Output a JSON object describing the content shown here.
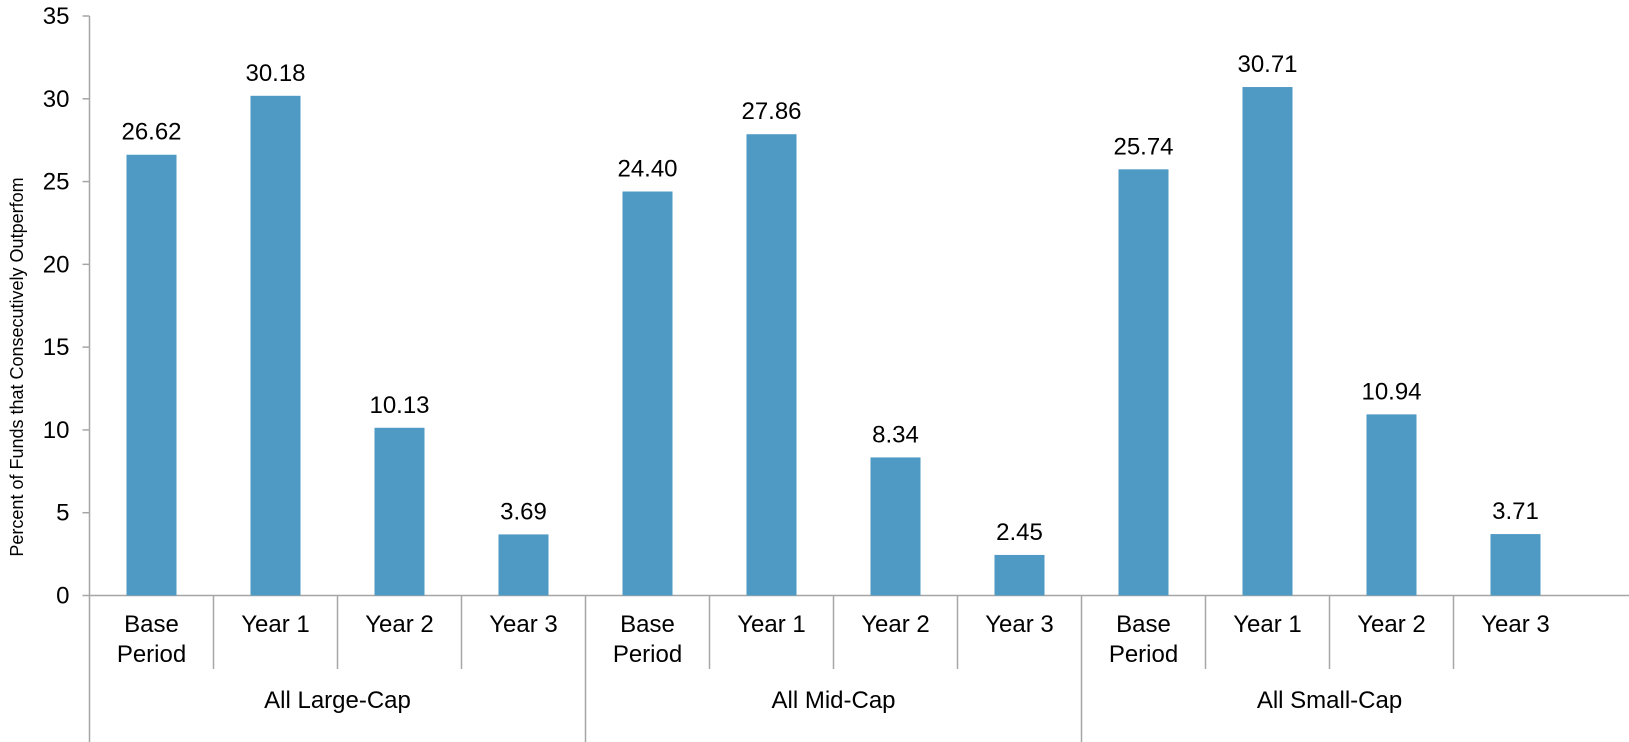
{
  "chart_data": {
    "type": "bar",
    "ylabel": "Percent of Funds that Consecutively Outperfom",
    "xlabel": "",
    "ylim": [
      0,
      35
    ],
    "yticks": [
      0,
      5,
      10,
      15,
      20,
      25,
      30,
      35
    ],
    "grid": false,
    "bar_color": "#4f9ac4",
    "groups": [
      {
        "label": "All Large-Cap",
        "categories": [
          [
            "Base",
            "Period"
          ],
          [
            "Year 1"
          ],
          [
            "Year 2"
          ],
          [
            "Year 3"
          ]
        ],
        "values": [
          26.62,
          30.18,
          10.13,
          3.69
        ],
        "value_labels": [
          "26.62",
          "30.18",
          "10.13",
          "3.69"
        ]
      },
      {
        "label": "All Mid-Cap",
        "categories": [
          [
            "Base",
            "Period"
          ],
          [
            "Year 1"
          ],
          [
            "Year 2"
          ],
          [
            "Year 3"
          ]
        ],
        "values": [
          24.4,
          27.86,
          8.34,
          2.45
        ],
        "value_labels": [
          "24.40",
          "27.86",
          "8.34",
          "2.45"
        ]
      },
      {
        "label": "All Small-Cap",
        "categories": [
          [
            "Base",
            "Period"
          ],
          [
            "Year 1"
          ],
          [
            "Year 2"
          ],
          [
            "Year 3"
          ]
        ],
        "values": [
          25.74,
          30.71,
          10.94,
          3.71
        ],
        "value_labels": [
          "25.74",
          "30.71",
          "10.94",
          "3.71"
        ]
      }
    ]
  }
}
